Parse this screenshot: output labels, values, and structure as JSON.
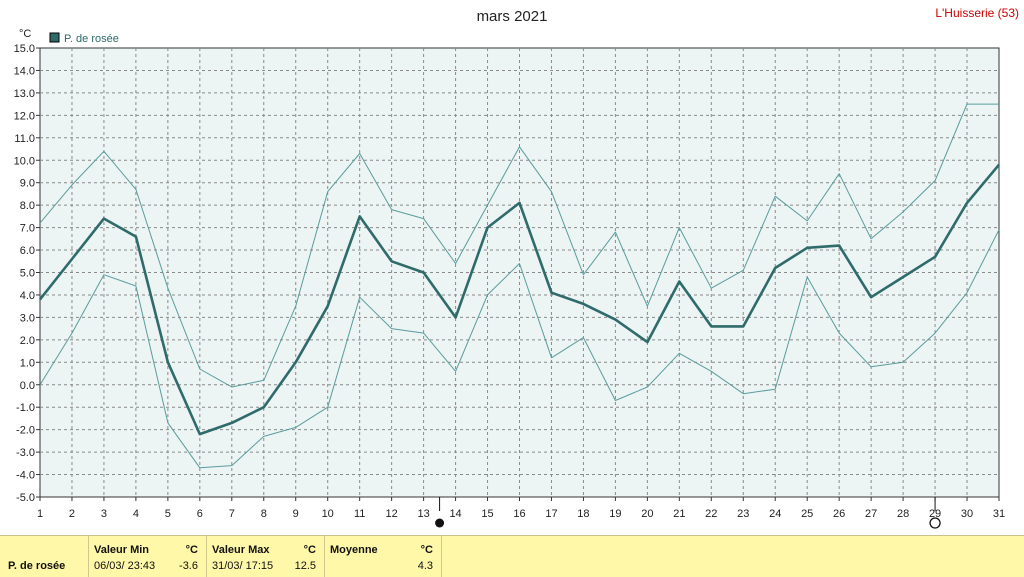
{
  "chart_data": {
    "type": "line",
    "title": "mars 2021",
    "station": "L'Huisserie (53)",
    "unit": "°C",
    "x": [
      1,
      2,
      3,
      4,
      5,
      6,
      7,
      8,
      9,
      10,
      11,
      12,
      13,
      14,
      15,
      16,
      17,
      18,
      19,
      20,
      21,
      22,
      23,
      24,
      25,
      26,
      27,
      28,
      29,
      30,
      31
    ],
    "ylim": [
      -5.0,
      15.0
    ],
    "yticks": [
      "15.0",
      "14.0",
      "13.0",
      "12.0",
      "11.0",
      "10.0",
      "9.0",
      "8.0",
      "7.0",
      "6.0",
      "5.0",
      "4.0",
      "3.0",
      "2.0",
      "1.0",
      "0.0",
      "-1.0",
      "-2.0",
      "-3.0",
      "-4.0",
      "-5.0"
    ],
    "grid": true,
    "legend_position": "top-left",
    "series": [
      {
        "name": "P. de rosée",
        "role": "mean",
        "color": "#2f6b6b",
        "values": [
          3.8,
          5.6,
          7.4,
          6.6,
          1.0,
          -2.2,
          -1.7,
          -1.0,
          1.0,
          3.5,
          7.5,
          5.5,
          5.0,
          3.0,
          7.0,
          8.1,
          4.1,
          3.6,
          2.9,
          1.9,
          4.6,
          2.6,
          2.6,
          5.2,
          6.1,
          6.2,
          3.9,
          4.8,
          5.7,
          8.1,
          9.8
        ]
      },
      {
        "role": "max",
        "color": "#5a9c9c",
        "values": [
          7.2,
          8.9,
          10.4,
          8.7,
          4.3,
          0.7,
          -0.1,
          0.2,
          3.5,
          8.6,
          10.3,
          7.8,
          7.4,
          5.4,
          8.0,
          10.6,
          8.6,
          4.9,
          6.8,
          3.5,
          7.0,
          4.3,
          5.1,
          8.4,
          7.3,
          9.4,
          6.5,
          7.7,
          9.1,
          12.5,
          12.5
        ]
      },
      {
        "role": "min",
        "color": "#5a9c9c",
        "values": [
          0.0,
          2.3,
          4.9,
          4.4,
          -1.7,
          -3.7,
          -3.6,
          -2.3,
          -1.9,
          -1.0,
          3.9,
          2.5,
          2.3,
          0.6,
          4.0,
          5.4,
          1.2,
          2.1,
          -0.7,
          -0.1,
          1.4,
          0.6,
          -0.4,
          -0.2,
          4.8,
          2.3,
          0.8,
          1.0,
          2.3,
          4.1,
          6.9
        ]
      }
    ],
    "markers": [
      {
        "day": 13.5,
        "type": "new-moon"
      },
      {
        "day": 29,
        "type": "full-moon"
      }
    ]
  },
  "footer": {
    "series_label": "P. de rosée",
    "min_label": "Valeur Min",
    "min_unit": "°C",
    "min_when": "06/03/  23:43",
    "min_value": "-3.6",
    "max_label": "Valeur Max",
    "max_unit": "°C",
    "max_when": "31/03/  17:15",
    "max_value": "12.5",
    "avg_label": "Moyenne",
    "avg_unit": "°C",
    "avg_value": "4.3"
  }
}
